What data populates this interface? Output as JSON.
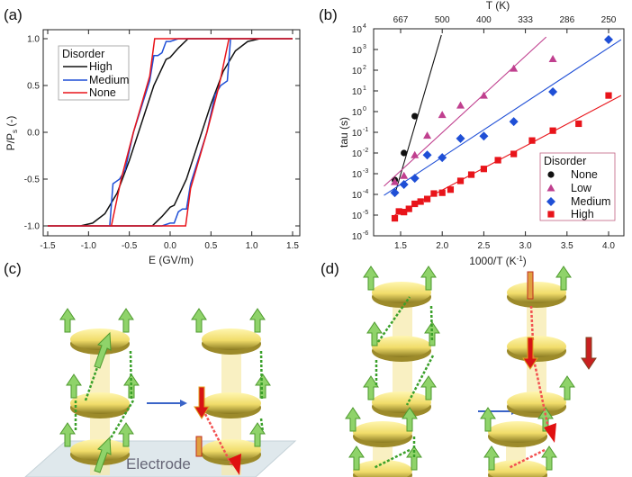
{
  "panels": {
    "a": "(a)",
    "b": "(b)",
    "c": "(c)",
    "d": "(d)"
  },
  "diagram": {
    "electrode_label": "Electrode"
  },
  "chart_data": [
    {
      "type": "line",
      "panel": "(a)",
      "xlabel": "E (GV/m)",
      "ylabel": "P/P",
      "ylabel_sub": "s",
      "ylabel_suffix": " (-)",
      "xlim": [
        -1.5,
        1.5
      ],
      "ylim": [
        -1.0,
        1.0
      ],
      "xticks": [
        -1.5,
        -1.0,
        -0.5,
        0.0,
        0.5,
        1.0,
        1.5
      ],
      "xtick_labels": [
        "-1.5",
        "-1.0",
        "-0.5",
        "0.0",
        "0.5",
        "1.0",
        "1.5"
      ],
      "yticks": [
        -1.0,
        -0.5,
        0.0,
        0.5,
        1.0
      ],
      "ytick_labels": [
        "-1.0",
        "-0.5",
        "0.0",
        "0.5",
        "1.0"
      ],
      "legend_title": "Disorder",
      "legend_position": "top-left",
      "series": [
        {
          "name": "High",
          "color": "#111111",
          "points": [
            [
              -1.5,
              -1
            ],
            [
              -0.22,
              -1
            ],
            [
              -0.1,
              -0.9
            ],
            [
              0,
              -0.8
            ],
            [
              0.05,
              -0.78
            ],
            [
              0.2,
              -0.5
            ],
            [
              0.5,
              0.3
            ],
            [
              0.65,
              0.65
            ],
            [
              0.8,
              0.87
            ],
            [
              0.95,
              0.97
            ],
            [
              1.1,
              1
            ],
            [
              1.5,
              1
            ],
            [
              0.22,
              1
            ],
            [
              0.1,
              0.9
            ],
            [
              0,
              0.8
            ],
            [
              -0.05,
              0.78
            ],
            [
              -0.2,
              0.5
            ],
            [
              -0.5,
              -0.3
            ],
            [
              -0.65,
              -0.65
            ],
            [
              -0.8,
              -0.87
            ],
            [
              -0.95,
              -0.97
            ],
            [
              -1.1,
              -1
            ],
            [
              -1.5,
              -1
            ]
          ]
        },
        {
          "name": "Medium",
          "color": "#1f4fd6",
          "points": [
            [
              -1.5,
              -1
            ],
            [
              -0.1,
              -1
            ],
            [
              0,
              -0.97
            ],
            [
              0.05,
              -0.97
            ],
            [
              0.1,
              -0.85
            ],
            [
              0.15,
              -0.82
            ],
            [
              0.2,
              -0.82
            ],
            [
              0.25,
              -0.55
            ],
            [
              0.45,
              0
            ],
            [
              0.55,
              0.4
            ],
            [
              0.62,
              0.5
            ],
            [
              0.7,
              0.55
            ],
            [
              0.74,
              1
            ],
            [
              1.5,
              1
            ],
            [
              0.1,
              1
            ],
            [
              0,
              0.97
            ],
            [
              -0.05,
              0.97
            ],
            [
              -0.1,
              0.85
            ],
            [
              -0.15,
              0.82
            ],
            [
              -0.2,
              0.82
            ],
            [
              -0.25,
              0.55
            ],
            [
              -0.45,
              0
            ],
            [
              -0.55,
              -0.4
            ],
            [
              -0.62,
              -0.5
            ],
            [
              -0.7,
              -0.55
            ],
            [
              -0.74,
              -1
            ],
            [
              -1.5,
              -1
            ]
          ]
        },
        {
          "name": "None",
          "color": "#e8141a",
          "points": [
            [
              -1.5,
              -1
            ],
            [
              0.19,
              -1
            ],
            [
              0.25,
              -0.6
            ],
            [
              0.45,
              0
            ],
            [
              0.6,
              0.5
            ],
            [
              0.72,
              1
            ],
            [
              1.5,
              1
            ],
            [
              -0.19,
              1
            ],
            [
              -0.25,
              0.6
            ],
            [
              -0.45,
              0
            ],
            [
              -0.6,
              -0.5
            ],
            [
              -0.72,
              -1
            ],
            [
              -1.5,
              -1
            ]
          ]
        }
      ]
    },
    {
      "type": "scatter",
      "panel": "(b)",
      "xlabel": "1000/T (K",
      "xlabel_sup": "-1",
      "xlabel_suffix": ")",
      "ylabel": "tau (s)",
      "top_xlabel": "T (K)",
      "xlim": [
        1.17,
        4.2
      ],
      "ylim_log10": [
        -6,
        4
      ],
      "yscale": "log",
      "xticks": [
        1.5,
        2.0,
        2.5,
        3.0,
        3.5,
        4.0
      ],
      "xtick_labels": [
        "1.5",
        "2.0",
        "2.5",
        "3.0",
        "3.5",
        "4.0"
      ],
      "ytick_exponents": [
        -6,
        -5,
        -4,
        -3,
        -2,
        -1,
        0,
        1,
        2,
        3,
        4
      ],
      "ytick_base": "10",
      "top_ticks": [
        1.5,
        2.0,
        2.5,
        3.0,
        3.5,
        4.0
      ],
      "top_tick_labels": [
        "667",
        "500",
        "400",
        "333",
        "286",
        "250"
      ],
      "legend_title": "Disorder",
      "legend_position": "bottom-right",
      "series": [
        {
          "name": "None",
          "color": "#111111",
          "marker": "circle",
          "x": [
            1.43,
            1.54,
            1.67
          ],
          "y": [
            0.0005,
            0.01,
            0.6
          ],
          "fit": [
            [
              1.43,
              0.0001
            ],
            [
              1.99,
              5000.0
            ]
          ]
        },
        {
          "name": "Low",
          "color": "#c0408f",
          "marker": "triangle",
          "x": [
            1.43,
            1.54,
            1.67,
            1.82,
            2.0,
            2.22,
            2.5,
            2.86,
            3.33
          ],
          "y": [
            0.0004,
            0.0008,
            0.008,
            0.07,
            0.7,
            2,
            6,
            120,
            350
          ],
          "fit": [
            [
              1.3,
              0.00025
            ],
            [
              3.25,
              4000.0
            ]
          ]
        },
        {
          "name": "Medium",
          "color": "#1f4fd6",
          "marker": "diamond",
          "x": [
            1.43,
            1.54,
            1.67,
            1.82,
            2.0,
            2.22,
            2.5,
            2.86,
            3.33,
            4.0
          ],
          "y": [
            0.00012,
            0.0003,
            0.0006,
            0.008,
            0.006,
            0.05,
            0.065,
            0.33,
            9,
            3000.0
          ],
          "fit": [
            [
              1.3,
              9e-05
            ],
            [
              4.15,
              3000.0
            ]
          ]
        },
        {
          "name": "High",
          "color": "#e8141a",
          "marker": "square",
          "x": [
            1.43,
            1.48,
            1.54,
            1.6,
            1.67,
            1.74,
            1.82,
            1.9,
            2.0,
            2.1,
            2.22,
            2.35,
            2.5,
            2.67,
            2.86,
            3.08,
            3.33,
            3.64,
            4.0
          ],
          "y": [
            7e-06,
            1.5e-05,
            1.4e-05,
            2e-05,
            3.5e-05,
            4.5e-05,
            6e-05,
            0.00011,
            0.00012,
            0.00017,
            0.00045,
            0.0009,
            0.0017,
            0.0045,
            0.009,
            0.04,
            0.12,
            0.26,
            6
          ],
          "fit": [
            [
              1.43,
              1e-05
            ],
            [
              4.15,
              6
            ]
          ]
        }
      ]
    }
  ]
}
